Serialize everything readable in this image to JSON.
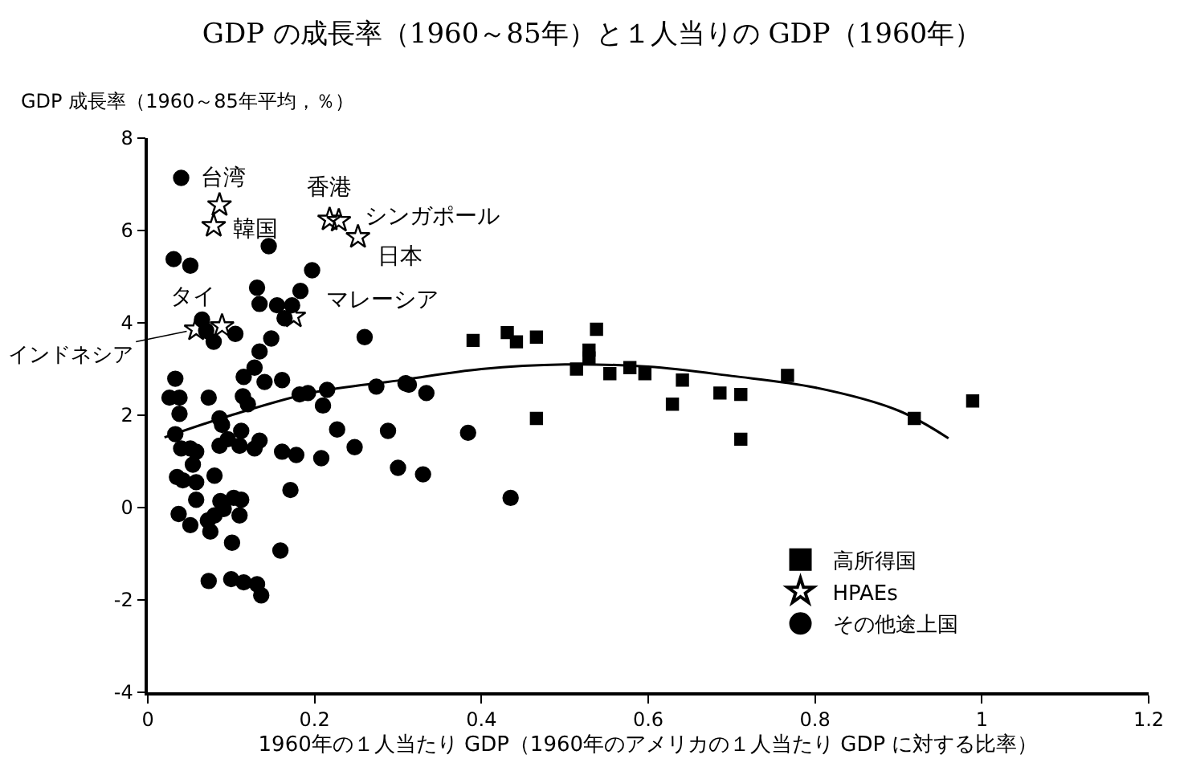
{
  "chart_data": {
    "type": "scatter",
    "title": "GDP の成長率（1960～85年）と１人当りの GDP（1960年）",
    "xlabel": "1960年の１人当たり GDP（1960年のアメリカの１人当たり GDP に対する比率）",
    "ylabel": "GDP 成長率（1960～85年平均，％）",
    "xlim": [
      0,
      1.2
    ],
    "xticks": [
      0,
      0.2,
      0.4,
      0.6,
      0.8,
      1,
      1.2
    ],
    "ylim": [
      -4,
      8
    ],
    "yticks": [
      -4,
      -2,
      0,
      2,
      4,
      6,
      8
    ],
    "legend": "bottom right",
    "series": [
      {
        "name": "高所得国",
        "color": "#000000",
        "marker": "square",
        "x": [
          0.39,
          0.431,
          0.442,
          0.466,
          0.466,
          0.514,
          0.529,
          0.529,
          0.538,
          0.554,
          0.578,
          0.596,
          0.641,
          0.629,
          0.686,
          0.711,
          0.711,
          0.767,
          0.919,
          0.989
        ],
        "values": [
          3.62,
          3.79,
          3.59,
          3.69,
          1.93,
          3.0,
          3.41,
          3.24,
          3.86,
          2.9,
          3.03,
          2.9,
          2.76,
          2.24,
          2.48,
          2.45,
          1.48,
          2.86,
          1.93,
          2.31
        ]
      },
      {
        "name": "HPAEs",
        "color": "#000000",
        "marker": "star",
        "x": [
          0.086,
          0.079,
          0.218,
          0.229,
          0.252,
          0.058,
          0.089,
          0.175
        ],
        "values": [
          6.55,
          6.1,
          6.24,
          6.21,
          5.86,
          3.86,
          3.93,
          4.14
        ]
      },
      {
        "name": "その他途上国",
        "color": "#000000",
        "marker": "circle",
        "x": [
          0.04,
          0.145,
          0.031,
          0.051,
          0.197,
          0.131,
          0.183,
          0.134,
          0.155,
          0.173,
          0.164,
          0.065,
          0.07,
          0.079,
          0.105,
          0.26,
          0.148,
          0.134,
          0.128,
          0.033,
          0.115,
          0.14,
          0.161,
          0.026,
          0.038,
          0.073,
          0.114,
          0.12,
          0.182,
          0.192,
          0.215,
          0.274,
          0.313,
          0.21,
          0.309,
          0.334,
          0.288,
          0.384,
          0.3,
          0.33,
          0.435,
          0.038,
          0.086,
          0.089,
          0.033,
          0.096,
          0.112,
          0.086,
          0.11,
          0.128,
          0.134,
          0.04,
          0.051,
          0.058,
          0.054,
          0.035,
          0.042,
          0.058,
          0.08,
          0.161,
          0.178,
          0.208,
          0.227,
          0.248,
          0.058,
          0.171,
          0.037,
          0.051,
          0.072,
          0.08,
          0.087,
          0.091,
          0.103,
          0.112,
          0.11,
          0.075,
          0.101,
          0.159,
          0.073,
          0.1,
          0.115,
          0.131,
          0.136
        ],
        "values": [
          7.14,
          5.66,
          5.38,
          5.24,
          5.14,
          4.76,
          4.69,
          4.41,
          4.38,
          4.38,
          4.1,
          4.07,
          3.83,
          3.59,
          3.76,
          3.69,
          3.66,
          3.38,
          3.03,
          2.79,
          2.83,
          2.72,
          2.76,
          2.38,
          2.38,
          2.38,
          2.41,
          2.24,
          2.45,
          2.48,
          2.55,
          2.62,
          2.66,
          2.21,
          2.69,
          2.48,
          1.66,
          1.62,
          0.86,
          0.72,
          0.21,
          2.03,
          1.93,
          1.79,
          1.59,
          1.48,
          1.66,
          1.34,
          1.34,
          1.28,
          1.45,
          1.28,
          1.28,
          1.21,
          0.93,
          0.66,
          0.59,
          0.55,
          0.69,
          1.21,
          1.14,
          1.07,
          1.69,
          1.31,
          0.17,
          0.38,
          -0.14,
          -0.38,
          -0.28,
          -0.17,
          0.14,
          -0.03,
          0.21,
          0.17,
          -0.17,
          -0.52,
          -0.76,
          -0.93,
          -1.59,
          -1.55,
          -1.62,
          -1.66,
          -1.9
        ]
      },
      {
        "type": "line",
        "color": "#000000",
        "marker": "none",
        "line_style": "solid",
        "x": [
          0.02,
          0.1,
          0.2,
          0.3,
          0.4,
          0.5,
          0.6,
          0.7,
          0.8,
          0.9,
          0.96
        ],
        "values": [
          1.52,
          2.0,
          2.5,
          2.75,
          3.0,
          3.1,
          3.05,
          2.85,
          2.6,
          2.1,
          1.5
        ]
      }
    ],
    "annotations": [
      {
        "text": "台湾",
        "x": 0.04,
        "y": 7.14
      },
      {
        "text": "韓国",
        "x": 0.079,
        "y": 6.1
      },
      {
        "text": "香港",
        "x": 0.218,
        "y": 6.24
      },
      {
        "text": "シンガポール",
        "x": 0.229,
        "y": 6.21
      },
      {
        "text": "日本",
        "x": 0.252,
        "y": 5.86
      },
      {
        "text": "タイ",
        "x": 0.089,
        "y": 3.93
      },
      {
        "text": "インドネシア",
        "x": 0.058,
        "y": 3.86
      },
      {
        "text": "マレーシア",
        "x": 0.175,
        "y": 4.14
      }
    ]
  }
}
